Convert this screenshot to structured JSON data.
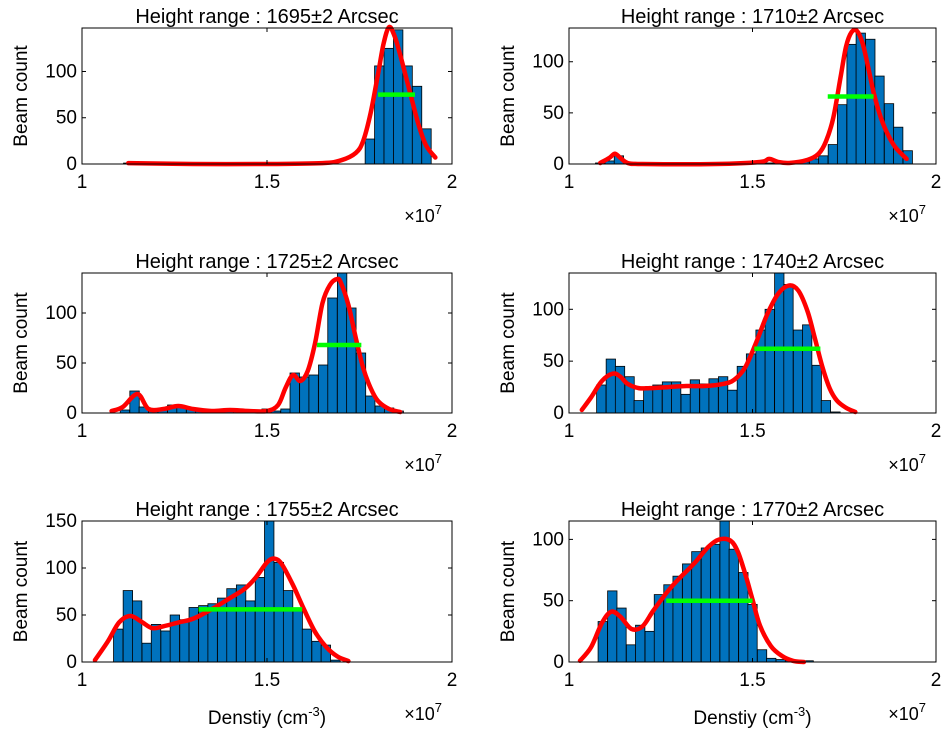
{
  "figure": {
    "x_multiplier_base": "×10",
    "x_multiplier_exp": "7",
    "xlabel_prefix": "Denstiy (cm",
    "xlabel_exp": "-3",
    "xlabel_suffix": ")",
    "colors": {
      "bars": "#0072bd",
      "fit": "#ff0000",
      "fwhm": "#00ff00",
      "axes": "#000000"
    }
  },
  "chart_data": [
    {
      "type": "bar",
      "title": "Height range : 1695±2 Arcsec",
      "ylabel": "Beam count",
      "xlabel": "",
      "xlim": [
        1.0,
        2.0
      ],
      "ylim": [
        0,
        147
      ],
      "xticks": [
        1,
        1.5,
        2
      ],
      "xticklabels": [
        "1",
        "1.5",
        "2"
      ],
      "yticks": [
        0,
        50,
        100
      ],
      "yticklabels": [
        "0",
        "50",
        "100"
      ],
      "bin_width": 0.0255,
      "bin_centers": [
        1.125,
        1.778,
        1.8035,
        1.829,
        1.8545,
        1.88,
        1.9055,
        1.931
      ],
      "values": [
        1,
        27,
        106,
        125,
        145,
        106,
        84,
        38
      ],
      "fit_curve": {
        "x": [
          1.125,
          1.3,
          1.5,
          1.65,
          1.7,
          1.74,
          1.76,
          1.78,
          1.8,
          1.815,
          1.83,
          1.845,
          1.86,
          1.875,
          1.89,
          1.91,
          1.93,
          1.955
        ],
        "y": [
          1,
          0,
          0,
          1,
          4,
          12,
          25,
          55,
          97,
          130,
          148,
          138,
          118,
          95,
          72,
          42,
          20,
          7
        ]
      },
      "fwhm": {
        "x0": 1.8,
        "x1": 1.9,
        "y": 75
      }
    },
    {
      "type": "bar",
      "title": "Height range : 1710±2 Arcsec",
      "ylabel": "Beam count",
      "xlabel": "",
      "xlim": [
        1.0,
        2.0
      ],
      "ylim": [
        0,
        133
      ],
      "xticks": [
        1,
        1.5,
        2
      ],
      "xticklabels": [
        "1",
        "1.5",
        "2"
      ],
      "yticks": [
        0,
        50,
        100
      ],
      "yticklabels": [
        "0",
        "50",
        "100"
      ],
      "bin_width": 0.0255,
      "bin_centers": [
        1.085,
        1.111,
        1.136,
        1.54,
        1.566,
        1.591,
        1.617,
        1.642,
        1.668,
        1.693,
        1.719,
        1.744,
        1.77,
        1.795,
        1.821,
        1.846,
        1.872,
        1.897,
        1.923
      ],
      "values": [
        1,
        3,
        8,
        1,
        1,
        1,
        1,
        2,
        5,
        8,
        19,
        58,
        117,
        128,
        122,
        86,
        59,
        36,
        13
      ],
      "fit_curve": {
        "x": [
          1.085,
          1.11,
          1.125,
          1.14,
          1.16,
          1.2,
          1.4,
          1.52,
          1.545,
          1.57,
          1.6,
          1.65,
          1.68,
          1.7,
          1.72,
          1.74,
          1.755,
          1.77,
          1.785,
          1.8,
          1.815,
          1.83,
          1.85,
          1.87,
          1.89,
          1.92
        ],
        "y": [
          1,
          6,
          10,
          6,
          1,
          0,
          0,
          2,
          5,
          2,
          1,
          4,
          10,
          22,
          45,
          85,
          115,
          129,
          130,
          118,
          95,
          70,
          45,
          28,
          16,
          5
        ]
      },
      "fwhm": {
        "x0": 1.705,
        "x1": 1.83,
        "y": 66
      }
    },
    {
      "type": "bar",
      "title": "Height range : 1725±2 Arcsec",
      "ylabel": "Beam count",
      "xlabel": "",
      "xlim": [
        1.0,
        2.0
      ],
      "ylim": [
        0,
        140
      ],
      "xticks": [
        1,
        1.5,
        2
      ],
      "xticklabels": [
        "1",
        "1.5",
        "2"
      ],
      "yticks": [
        0,
        50,
        100
      ],
      "yticklabels": [
        "0",
        "50",
        "100"
      ],
      "bin_width": 0.0255,
      "bin_centers": [
        1.116,
        1.142,
        1.167,
        1.193,
        1.218,
        1.244,
        1.269,
        1.295,
        1.32,
        1.346,
        1.371,
        1.397,
        1.422,
        1.448,
        1.473,
        1.499,
        1.524,
        1.55,
        1.575,
        1.601,
        1.626,
        1.652,
        1.677,
        1.703,
        1.728,
        1.754,
        1.779,
        1.805,
        1.83,
        1.856
      ],
      "values": [
        3,
        22,
        6,
        4,
        4,
        8,
        6,
        4,
        3,
        2,
        3,
        3,
        3,
        3,
        2,
        4,
        2,
        4,
        40,
        36,
        38,
        48,
        115,
        140,
        105,
        60,
        17,
        7,
        5,
        2
      ],
      "fit_curve": {
        "x": [
          1.08,
          1.11,
          1.15,
          1.18,
          1.22,
          1.26,
          1.3,
          1.35,
          1.4,
          1.45,
          1.5,
          1.53,
          1.55,
          1.57,
          1.59,
          1.61,
          1.63,
          1.65,
          1.67,
          1.69,
          1.7,
          1.72,
          1.74,
          1.76,
          1.78,
          1.8,
          1.83,
          1.86
        ],
        "y": [
          2,
          6,
          19,
          4,
          4,
          7,
          4,
          2,
          3,
          2,
          2,
          8,
          25,
          38,
          32,
          42,
          70,
          110,
          128,
          134,
          130,
          108,
          75,
          45,
          25,
          12,
          4,
          1
        ]
      },
      "fwhm": {
        "x0": 1.635,
        "x1": 1.755,
        "y": 68
      }
    },
    {
      "type": "bar",
      "title": "Height range : 1740±2 Arcsec",
      "ylabel": "Beam count",
      "xlabel": "",
      "xlim": [
        1.0,
        2.0
      ],
      "ylim": [
        0,
        135
      ],
      "xticks": [
        1,
        1.5,
        2
      ],
      "xticklabels": [
        "1",
        "1.5",
        "2"
      ],
      "yticks": [
        0,
        50,
        100
      ],
      "yticklabels": [
        "0",
        "50",
        "100"
      ],
      "bin_width": 0.0255,
      "bin_centers": [
        1.088,
        1.114,
        1.139,
        1.165,
        1.19,
        1.216,
        1.241,
        1.267,
        1.292,
        1.318,
        1.343,
        1.369,
        1.394,
        1.42,
        1.445,
        1.471,
        1.496,
        1.522,
        1.547,
        1.573,
        1.598,
        1.624,
        1.649,
        1.675,
        1.7,
        1.726
      ],
      "values": [
        27,
        52,
        45,
        35,
        12,
        25,
        27,
        30,
        30,
        18,
        32,
        28,
        33,
        35,
        22,
        45,
        57,
        80,
        100,
        138,
        124,
        80,
        85,
        46,
        12,
        1
      ],
      "fit_curve": {
        "x": [
          1.035,
          1.06,
          1.09,
          1.12,
          1.14,
          1.16,
          1.19,
          1.22,
          1.27,
          1.32,
          1.37,
          1.42,
          1.45,
          1.48,
          1.51,
          1.54,
          1.57,
          1.6,
          1.625,
          1.65,
          1.67,
          1.69,
          1.71,
          1.73,
          1.755,
          1.78
        ],
        "y": [
          3,
          15,
          31,
          38,
          35,
          28,
          24,
          24,
          25,
          26,
          26,
          28,
          32,
          44,
          68,
          95,
          115,
          123,
          118,
          98,
          72,
          45,
          24,
          12,
          5,
          1
        ]
      },
      "fwhm": {
        "x0": 1.505,
        "x1": 1.685,
        "y": 62
      }
    },
    {
      "type": "bar",
      "title": "Height range : 1755±2 Arcsec",
      "ylabel": "Beam count",
      "xlabel": "",
      "xlim": [
        1.0,
        2.0
      ],
      "ylim": [
        0,
        150
      ],
      "xticks": [
        1,
        1.5,
        2
      ],
      "xticklabels": [
        "1",
        "1.5",
        "2"
      ],
      "yticks": [
        0,
        50,
        100,
        150
      ],
      "yticklabels": [
        "0",
        "50",
        "100",
        "150"
      ],
      "bin_width": 0.0255,
      "bin_centers": [
        1.098,
        1.124,
        1.149,
        1.175,
        1.2,
        1.226,
        1.251,
        1.277,
        1.302,
        1.328,
        1.353,
        1.379,
        1.404,
        1.43,
        1.455,
        1.481,
        1.506,
        1.532,
        1.557,
        1.583,
        1.608,
        1.634,
        1.659,
        1.685
      ],
      "values": [
        35,
        76,
        65,
        20,
        40,
        33,
        50,
        45,
        58,
        60,
        62,
        68,
        78,
        82,
        65,
        90,
        154,
        106,
        76,
        55,
        35,
        22,
        18,
        2
      ],
      "fit_curve": {
        "x": [
          1.035,
          1.07,
          1.1,
          1.13,
          1.16,
          1.19,
          1.22,
          1.26,
          1.3,
          1.35,
          1.4,
          1.44,
          1.47,
          1.5,
          1.52,
          1.54,
          1.57,
          1.6,
          1.63,
          1.66,
          1.69,
          1.72
        ],
        "y": [
          2,
          22,
          42,
          49,
          43,
          36,
          38,
          42,
          46,
          56,
          68,
          78,
          90,
          106,
          110,
          104,
          82,
          56,
          32,
          16,
          6,
          1
        ]
      },
      "fwhm": {
        "x0": 1.315,
        "x1": 1.595,
        "y": 56
      }
    },
    {
      "type": "bar",
      "title": "Height range : 1770±2 Arcsec",
      "ylabel": "Beam count",
      "xlabel": "",
      "xlim": [
        1.0,
        2.0
      ],
      "ylim": [
        0,
        115
      ],
      "xticks": [
        1,
        1.5,
        2
      ],
      "xticklabels": [
        "1",
        "1.5",
        "2"
      ],
      "yticks": [
        0,
        50,
        100
      ],
      "yticklabels": [
        "0",
        "50",
        "100"
      ],
      "bin_width": 0.0255,
      "bin_centers": [
        1.092,
        1.118,
        1.143,
        1.169,
        1.194,
        1.22,
        1.245,
        1.271,
        1.296,
        1.322,
        1.347,
        1.373,
        1.398,
        1.424,
        1.449,
        1.475,
        1.5,
        1.526,
        1.551,
        1.577,
        1.602,
        1.628,
        1.653
      ],
      "values": [
        33,
        58,
        44,
        14,
        30,
        25,
        55,
        63,
        70,
        80,
        90,
        93,
        96,
        120,
        92,
        73,
        47,
        10,
        3,
        2,
        1,
        1,
        1
      ],
      "fit_curve": {
        "x": [
          1.03,
          1.06,
          1.09,
          1.115,
          1.14,
          1.17,
          1.2,
          1.23,
          1.27,
          1.3,
          1.34,
          1.38,
          1.41,
          1.44,
          1.46,
          1.48,
          1.5,
          1.52,
          1.55,
          1.58,
          1.61,
          1.64
        ],
        "y": [
          1,
          12,
          32,
          41,
          37,
          27,
          29,
          42,
          58,
          68,
          80,
          94,
          100,
          99,
          90,
          72,
          51,
          30,
          13,
          5,
          1,
          0
        ]
      },
      "fwhm": {
        "x0": 1.265,
        "x1": 1.5,
        "y": 50
      }
    }
  ]
}
